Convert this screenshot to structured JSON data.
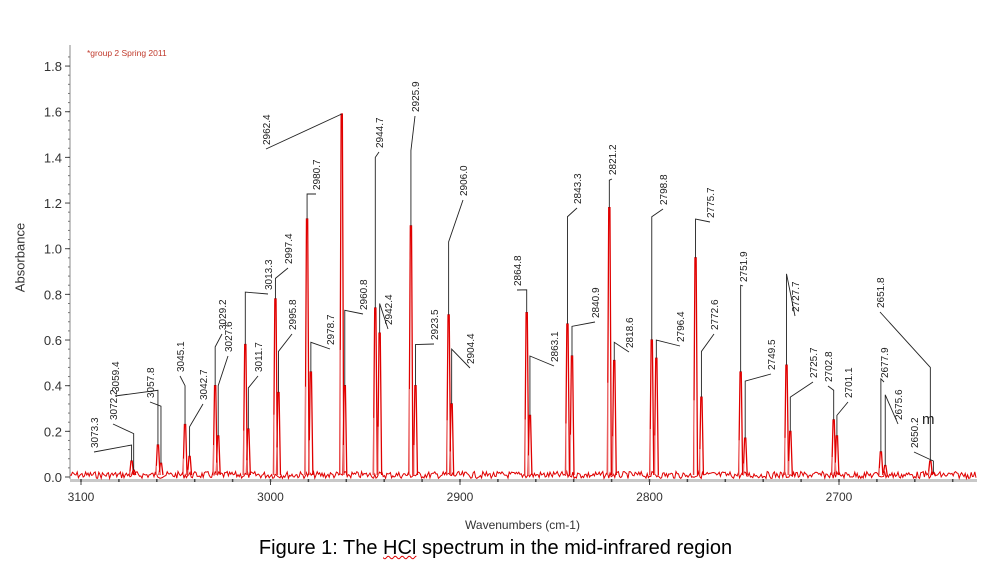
{
  "chart_data": {
    "type": "line",
    "title": "",
    "annotation_note": "*group 2 Spring 2011",
    "xlabel": "Wavenumbers (cm-1)",
    "ylabel": "Absorbance",
    "xlim": [
      3106,
      2627
    ],
    "ylim": [
      0.0,
      1.9
    ],
    "x_ticks": [
      "3100",
      "3000",
      "2900",
      "2800",
      "2700"
    ],
    "y_ticks": [
      "0.0",
      "0.2",
      "0.4",
      "0.6",
      "0.8",
      "1.0",
      "1.2",
      "1.4",
      "1.6",
      "1.8"
    ],
    "x_reversed": true,
    "grid": false,
    "line_color": "#e00000",
    "peaks": [
      {
        "label": "3073.3",
        "x": 3073.3,
        "y": 0.07
      },
      {
        "label": "3072.2",
        "x": 3072.2,
        "y": 0.03
      },
      {
        "label": "3059.4",
        "x": 3059.4,
        "y": 0.14
      },
      {
        "label": "3057.8",
        "x": 3057.8,
        "y": 0.06
      },
      {
        "label": "3045.1",
        "x": 3045.1,
        "y": 0.23
      },
      {
        "label": "3042.7",
        "x": 3042.7,
        "y": 0.09
      },
      {
        "label": "3029.2",
        "x": 3029.2,
        "y": 0.4
      },
      {
        "label": "3027.6",
        "x": 3027.6,
        "y": 0.18
      },
      {
        "label": "3013.3",
        "x": 3013.3,
        "y": 0.58
      },
      {
        "label": "3011.7",
        "x": 3011.7,
        "y": 0.21
      },
      {
        "label": "2997.4",
        "x": 2997.4,
        "y": 0.78
      },
      {
        "label": "2995.8",
        "x": 2995.8,
        "y": 0.37
      },
      {
        "label": "2980.7",
        "x": 2980.7,
        "y": 1.13
      },
      {
        "label": "2978.7",
        "x": 2978.7,
        "y": 0.46
      },
      {
        "label": "2962.4",
        "x": 2962.4,
        "y": 1.59
      },
      {
        "label": "2960.8",
        "x": 2960.8,
        "y": 0.4
      },
      {
        "label": "2944.7",
        "x": 2944.7,
        "y": 0.74
      },
      {
        "label": "2942.4",
        "x": 2942.4,
        "y": 0.63
      },
      {
        "label": "2925.9",
        "x": 2925.9,
        "y": 1.1
      },
      {
        "label": "2923.5",
        "x": 2923.5,
        "y": 0.4
      },
      {
        "label": "2906.0",
        "x": 2906.0,
        "y": 0.71
      },
      {
        "label": "2904.4",
        "x": 2904.4,
        "y": 0.32
      },
      {
        "label": "2864.8",
        "x": 2864.8,
        "y": 0.72
      },
      {
        "label": "2863.1",
        "x": 2863.1,
        "y": 0.27
      },
      {
        "label": "2843.3",
        "x": 2843.3,
        "y": 0.67
      },
      {
        "label": "2840.9",
        "x": 2840.9,
        "y": 0.53
      },
      {
        "label": "2821.2",
        "x": 2821.2,
        "y": 1.18
      },
      {
        "label": "2818.6",
        "x": 2818.6,
        "y": 0.51
      },
      {
        "label": "2798.8",
        "x": 2798.8,
        "y": 0.6
      },
      {
        "label": "2796.4",
        "x": 2796.4,
        "y": 0.52
      },
      {
        "label": "2775.7",
        "x": 2775.7,
        "y": 0.96
      },
      {
        "label": "2772.6",
        "x": 2772.6,
        "y": 0.35
      },
      {
        "label": "2751.9",
        "x": 2751.9,
        "y": 0.46
      },
      {
        "label": "2749.5",
        "x": 2749.5,
        "y": 0.17
      },
      {
        "label": "2727.7",
        "x": 2727.7,
        "y": 0.49
      },
      {
        "label": "2725.7",
        "x": 2725.7,
        "y": 0.2
      },
      {
        "label": "2702.8",
        "x": 2702.8,
        "y": 0.25
      },
      {
        "label": "2701.1",
        "x": 2701.1,
        "y": 0.18
      },
      {
        "label": "2677.9",
        "x": 2677.9,
        "y": 0.11
      },
      {
        "label": "2675.6",
        "x": 2675.6,
        "y": 0.05
      },
      {
        "label": "2651.8",
        "x": 2651.8,
        "y": 0.07
      },
      {
        "label": "2650.2",
        "x": 2650.2,
        "y": 0.02
      }
    ],
    "extra_marker": "m"
  },
  "caption": {
    "prefix": "Figure 1:  The ",
    "squiggle": "HCl",
    "suffix": " spectrum in the mid-infrared region"
  }
}
